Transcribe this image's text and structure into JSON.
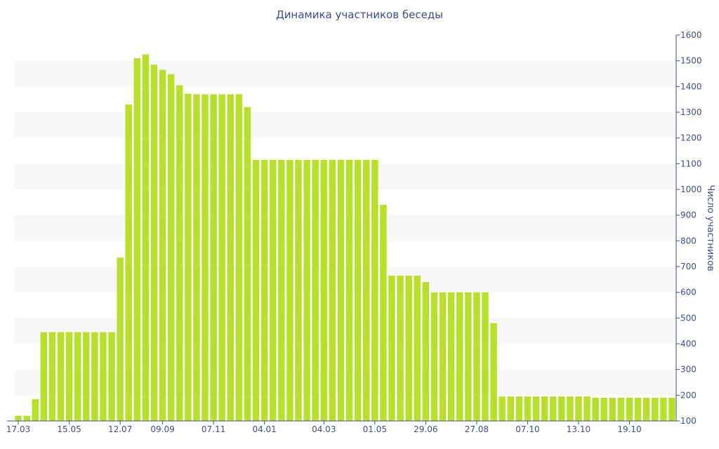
{
  "chart_data": {
    "type": "bar",
    "title": "Динамика участников беседы",
    "ylabel": "Число участников",
    "xlabel": "",
    "ylim": [
      100,
      1600
    ],
    "y_ticks": [
      100,
      200,
      300,
      400,
      500,
      600,
      700,
      800,
      900,
      1000,
      1100,
      1200,
      1300,
      1400,
      1500,
      1600
    ],
    "y_axis_side": "right",
    "x_tick_labels": [
      "17.03",
      "15.05",
      "12.07",
      "09.09",
      "07.11",
      "04.01",
      "04.03",
      "01.05",
      "29.06",
      "27.08",
      "07.10",
      "13.10",
      "19.10"
    ],
    "x_tick_indices": [
      0,
      6,
      12,
      17,
      23,
      29,
      36,
      42,
      48,
      54,
      60,
      66,
      72
    ],
    "values": [
      120,
      120,
      185,
      445,
      445,
      445,
      445,
      445,
      445,
      445,
      445,
      445,
      735,
      1330,
      1510,
      1525,
      1485,
      1465,
      1448,
      1405,
      1372,
      1370,
      1370,
      1370,
      1370,
      1370,
      1370,
      1320,
      1115,
      1115,
      1115,
      1115,
      1115,
      1115,
      1115,
      1115,
      1115,
      1115,
      1115,
      1115,
      1115,
      1115,
      1115,
      940,
      665,
      665,
      665,
      665,
      640,
      600,
      600,
      600,
      600,
      600,
      600,
      600,
      480,
      195,
      195,
      195,
      195,
      195,
      195,
      195,
      195,
      195,
      195,
      195,
      190,
      190,
      190,
      190,
      190,
      190,
      190,
      190,
      190,
      190
    ],
    "grid": true,
    "bar_color": "#b8df2b",
    "band_color": "#f7f7f7",
    "axis_color": "#3b4f8a",
    "text_color": "#3b4f8a"
  }
}
